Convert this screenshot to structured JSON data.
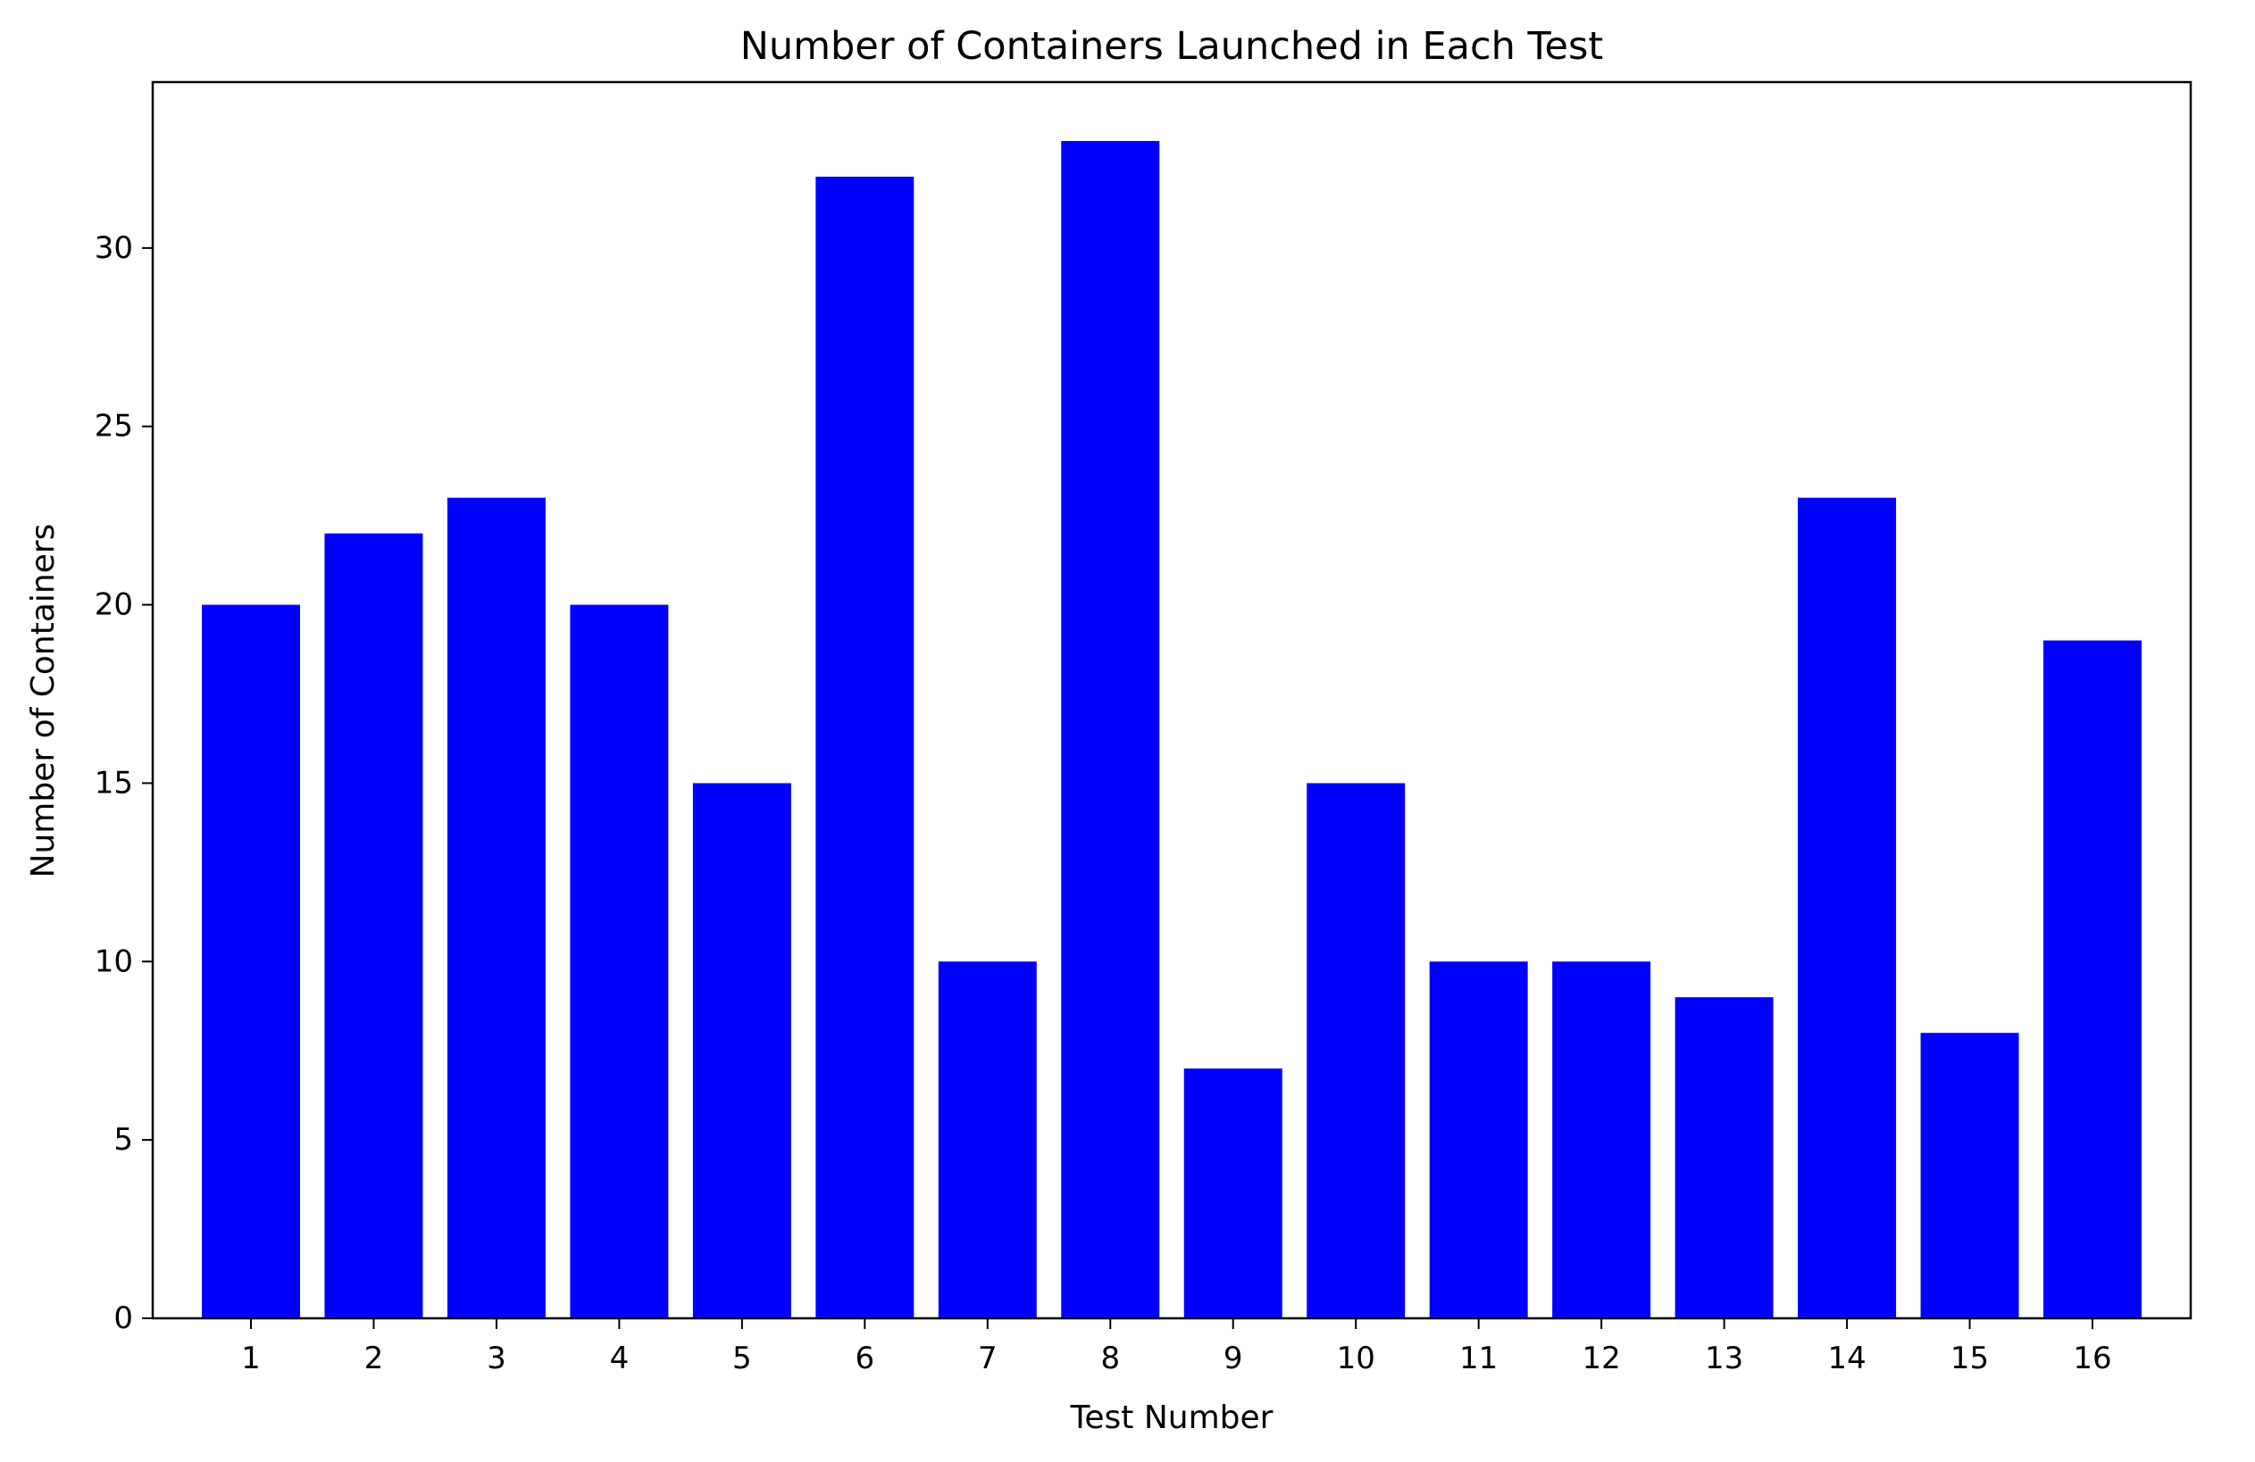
{
  "chart_data": {
    "type": "bar",
    "title": "Number of Containers Launched in Each Test",
    "xlabel": "Test Number",
    "ylabel": "Number of Containers",
    "categories": [
      "1",
      "2",
      "3",
      "4",
      "5",
      "6",
      "7",
      "8",
      "9",
      "10",
      "11",
      "12",
      "13",
      "14",
      "15",
      "16"
    ],
    "values": [
      20,
      22,
      23,
      20,
      15,
      32,
      10,
      33,
      7,
      15,
      10,
      10,
      9,
      23,
      8,
      19
    ],
    "yticks": [
      0,
      5,
      10,
      15,
      20,
      25,
      30
    ],
    "ylim": [
      0,
      34.65
    ],
    "xlim": [
      0.2,
      16.8
    ],
    "bar_width": 0.8,
    "grid": false,
    "bar_color": "#0000ff"
  }
}
